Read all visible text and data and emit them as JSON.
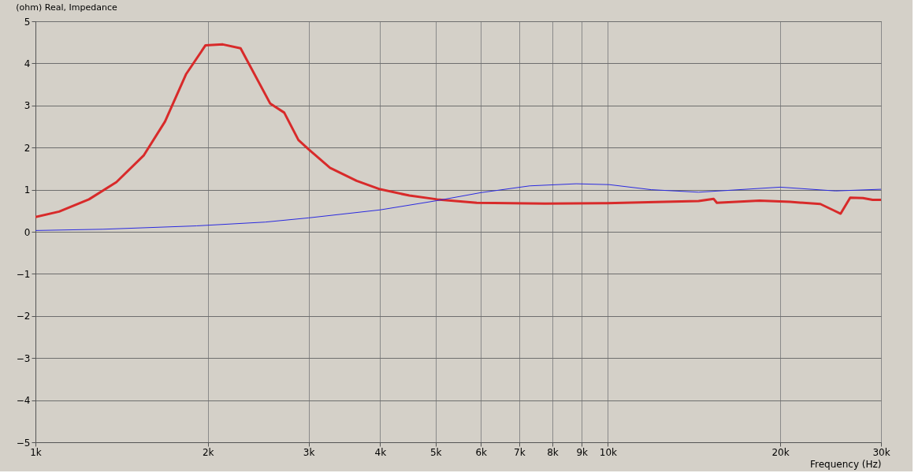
{
  "chart_data": {
    "type": "line",
    "title": "(ohm)  Real, Impedance",
    "xlabel": "Frequency (Hz)",
    "log": "x",
    "grid": true,
    "line_style": "solid",
    "marker": "none",
    "xlim": [
      1000,
      30000
    ],
    "xticks": [
      {
        "value": 1000,
        "label": "1k"
      },
      {
        "value": 2000,
        "label": "2k"
      },
      {
        "value": 3000,
        "label": "3k"
      },
      {
        "value": 4000,
        "label": "4k"
      },
      {
        "value": 5000,
        "label": "5k"
      },
      {
        "value": 6000,
        "label": "6k"
      },
      {
        "value": 7000,
        "label": "7k"
      },
      {
        "value": 8000,
        "label": "8k"
      },
      {
        "value": 9000,
        "label": "9k"
      },
      {
        "value": 10000,
        "label": "10k"
      },
      {
        "value": 20000,
        "label": "20k"
      },
      {
        "value": 30000,
        "label": "30k"
      }
    ],
    "ylim": [
      -5,
      5
    ],
    "yticks": [
      -5,
      -4,
      -3,
      -2,
      -1,
      0,
      1,
      2,
      3,
      4,
      5
    ],
    "series": [
      {
        "color": "#d82a2a",
        "x": [
          1000,
          1100,
          1240,
          1385,
          1547,
          1684,
          1832,
          1982,
          2125,
          2282,
          2570,
          2720,
          2880,
          3000,
          3270,
          3640,
          4000,
          4500,
          5030,
          5900,
          7770,
          9950,
          14400,
          15300,
          15500,
          18400,
          20800,
          23500,
          24700,
          25500,
          26500,
          27900,
          29000,
          30000
        ],
        "values": [
          0.35,
          0.48,
          0.77,
          1.18,
          1.82,
          2.62,
          3.74,
          4.43,
          4.45,
          4.36,
          3.05,
          2.83,
          2.18,
          1.96,
          1.52,
          1.21,
          1.01,
          0.86,
          0.77,
          0.69,
          0.67,
          0.68,
          0.73,
          0.78,
          0.69,
          0.74,
          0.71,
          0.66,
          0.52,
          0.43,
          0.81,
          0.8,
          0.76,
          0.76
        ]
      },
      {
        "color": "#2a2ae0",
        "x": [
          1000,
          1313,
          1911,
          2520,
          3000,
          4000,
          5030,
          6000,
          7300,
          8800,
          10050,
          11900,
          14400,
          20000,
          25000,
          30000
        ],
        "values": [
          0.03,
          0.06,
          0.14,
          0.23,
          0.33,
          0.52,
          0.74,
          0.93,
          1.09,
          1.14,
          1.12,
          1.0,
          0.94,
          1.06,
          0.97,
          1.01
        ]
      }
    ]
  }
}
